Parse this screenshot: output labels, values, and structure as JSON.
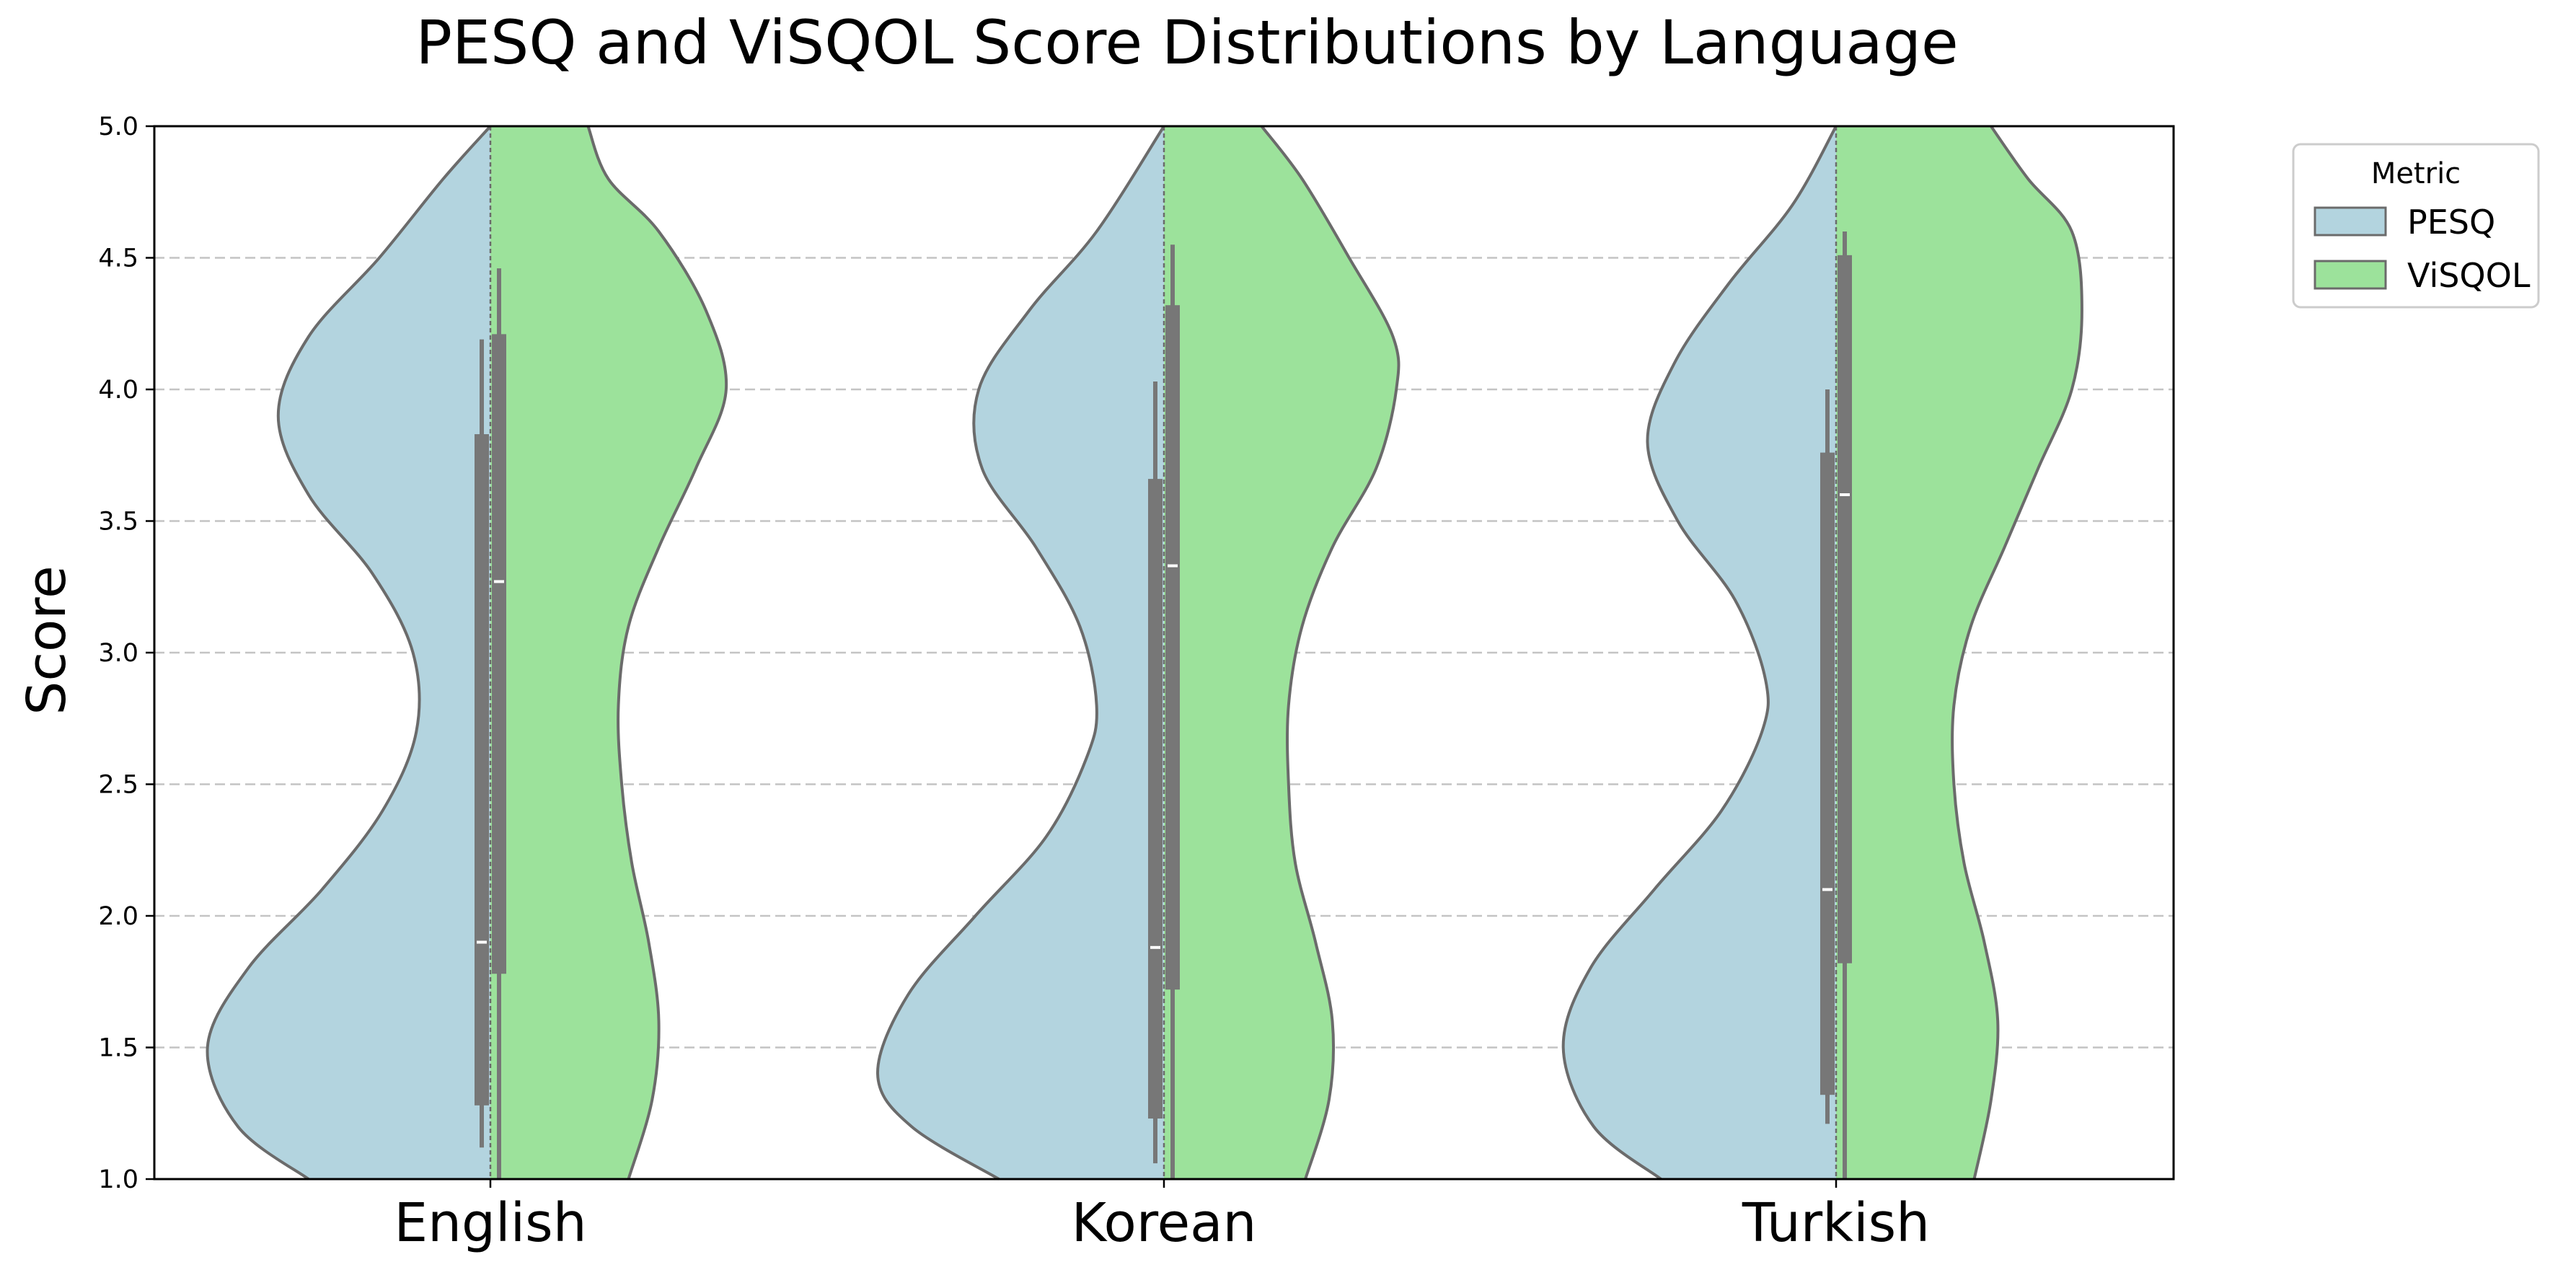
{
  "chart_data": {
    "type": "violin",
    "title": "PESQ and ViSQOL Score Distributions by Language",
    "ylabel": "Score",
    "ylim": [
      1.0,
      5.0
    ],
    "yticks": [
      "1.0",
      "1.5",
      "2.0",
      "2.5",
      "3.0",
      "3.5",
      "4.0",
      "4.5",
      "5.0"
    ],
    "grid": "y-dashed",
    "categories": [
      "English",
      "Korean",
      "Turkish"
    ],
    "legend": {
      "title": "Metric",
      "placement": "outside-top-right",
      "entries": [
        "PESQ",
        "ViSQOL"
      ]
    },
    "colors": {
      "PESQ": "#b3d4df",
      "ViSQOL": "#9ce29b",
      "outline": "#6b6b6b",
      "box": "#777777",
      "grid": "#c4c4c4"
    },
    "series": [
      {
        "name": "PESQ",
        "side": "left",
        "stats": [
          {
            "q1": 1.28,
            "median": 1.9,
            "q3": 3.83,
            "whisker_low": 1.12,
            "whisker_high": 4.19
          },
          {
            "q1": 1.23,
            "median": 1.88,
            "q3": 3.66,
            "whisker_low": 1.06,
            "whisker_high": 4.03
          },
          {
            "q1": 1.32,
            "median": 2.1,
            "q3": 3.76,
            "whisker_low": 1.21,
            "whisker_high": 4.0
          }
        ],
        "density": [
          [
            [
              1.0,
              0.54
            ],
            [
              1.2,
              0.75
            ],
            [
              1.5,
              0.84
            ],
            [
              1.8,
              0.72
            ],
            [
              2.1,
              0.5
            ],
            [
              2.4,
              0.32
            ],
            [
              2.7,
              0.22
            ],
            [
              3.0,
              0.23
            ],
            [
              3.3,
              0.35
            ],
            [
              3.6,
              0.54
            ],
            [
              3.9,
              0.63
            ],
            [
              4.2,
              0.54
            ],
            [
              4.5,
              0.33
            ],
            [
              4.8,
              0.14
            ],
            [
              5.0,
              0.0
            ]
          ],
          [
            [
              1.0,
              0.49
            ],
            [
              1.2,
              0.75
            ],
            [
              1.4,
              0.85
            ],
            [
              1.7,
              0.76
            ],
            [
              2.0,
              0.56
            ],
            [
              2.3,
              0.35
            ],
            [
              2.6,
              0.23
            ],
            [
              2.8,
              0.2
            ],
            [
              3.1,
              0.25
            ],
            [
              3.4,
              0.38
            ],
            [
              3.7,
              0.54
            ],
            [
              4.0,
              0.55
            ],
            [
              4.3,
              0.4
            ],
            [
              4.6,
              0.2
            ],
            [
              5.0,
              0.0
            ]
          ],
          [
            [
              1.0,
              0.52
            ],
            [
              1.2,
              0.72
            ],
            [
              1.5,
              0.81
            ],
            [
              1.8,
              0.73
            ],
            [
              2.1,
              0.54
            ],
            [
              2.4,
              0.34
            ],
            [
              2.7,
              0.22
            ],
            [
              2.9,
              0.21
            ],
            [
              3.2,
              0.3
            ],
            [
              3.5,
              0.47
            ],
            [
              3.8,
              0.56
            ],
            [
              4.1,
              0.48
            ],
            [
              4.4,
              0.32
            ],
            [
              4.7,
              0.13
            ],
            [
              5.0,
              0.0
            ]
          ]
        ]
      },
      {
        "name": "ViSQOL",
        "side": "right",
        "stats": [
          {
            "q1": 1.78,
            "median": 3.27,
            "q3": 4.21,
            "whisker_low": 1.0,
            "whisker_high": 4.46
          },
          {
            "q1": 1.72,
            "median": 3.33,
            "q3": 4.32,
            "whisker_low": 1.0,
            "whisker_high": 4.55
          },
          {
            "q1": 1.82,
            "median": 3.6,
            "q3": 4.51,
            "whisker_low": 1.0,
            "whisker_high": 4.6
          }
        ],
        "density": [
          [
            [
              1.0,
              0.41
            ],
            [
              1.3,
              0.48
            ],
            [
              1.6,
              0.5
            ],
            [
              1.9,
              0.47
            ],
            [
              2.2,
              0.42
            ],
            [
              2.5,
              0.39
            ],
            [
              2.8,
              0.38
            ],
            [
              3.1,
              0.41
            ],
            [
              3.4,
              0.5
            ],
            [
              3.7,
              0.61
            ],
            [
              4.0,
              0.7
            ],
            [
              4.3,
              0.64
            ],
            [
              4.6,
              0.5
            ],
            [
              4.8,
              0.35
            ],
            [
              5.0,
              0.29
            ]
          ],
          [
            [
              1.0,
              0.42
            ],
            [
              1.3,
              0.49
            ],
            [
              1.6,
              0.5
            ],
            [
              1.9,
              0.45
            ],
            [
              2.2,
              0.39
            ],
            [
              2.5,
              0.37
            ],
            [
              2.8,
              0.37
            ],
            [
              3.1,
              0.41
            ],
            [
              3.4,
              0.5
            ],
            [
              3.7,
              0.63
            ],
            [
              4.0,
              0.69
            ],
            [
              4.2,
              0.68
            ],
            [
              4.5,
              0.55
            ],
            [
              4.8,
              0.41
            ],
            [
              5.0,
              0.29
            ]
          ],
          [
            [
              1.0,
              0.41
            ],
            [
              1.3,
              0.46
            ],
            [
              1.6,
              0.48
            ],
            [
              1.9,
              0.44
            ],
            [
              2.2,
              0.38
            ],
            [
              2.5,
              0.35
            ],
            [
              2.8,
              0.35
            ],
            [
              3.1,
              0.4
            ],
            [
              3.4,
              0.5
            ],
            [
              3.7,
              0.6
            ],
            [
              4.0,
              0.7
            ],
            [
              4.3,
              0.73
            ],
            [
              4.6,
              0.7
            ],
            [
              4.8,
              0.57
            ],
            [
              5.0,
              0.46
            ]
          ]
        ]
      }
    ]
  }
}
